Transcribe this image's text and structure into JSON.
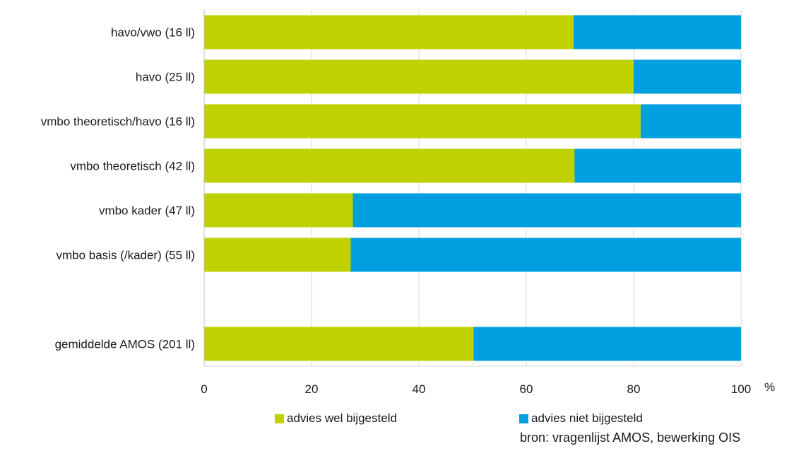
{
  "chart_data": {
    "type": "bar",
    "orientation": "horizontal",
    "stacked": true,
    "categories": [
      "havo/vwo (16 ll)",
      "havo (25 ll)",
      "vmbo theoretisch/havo (16 ll)",
      "vmbo theoretisch (42 ll)",
      "vmbo kader (47 ll)",
      "vmbo basis (/kader) (55 ll)",
      "",
      "gemiddelde AMOS (201 ll)"
    ],
    "series": [
      {
        "name": "advies wel bijgesteld",
        "color": "#bfd200",
        "values": [
          68.8,
          80,
          81.3,
          69,
          27.7,
          27.3,
          null,
          50.2
        ]
      },
      {
        "name": "advies niet bijgesteld",
        "color": "#00a0e0",
        "values": [
          31.2,
          20,
          18.7,
          31,
          72.3,
          72.7,
          null,
          49.8
        ]
      }
    ],
    "xlim": [
      0,
      100
    ],
    "xticks": [
      0,
      20,
      40,
      60,
      80,
      100
    ],
    "xunit": "%",
    "grid": true,
    "legend_position": "bottom"
  },
  "source": "bron: vragenlijst AMOS, bewerking OIS"
}
